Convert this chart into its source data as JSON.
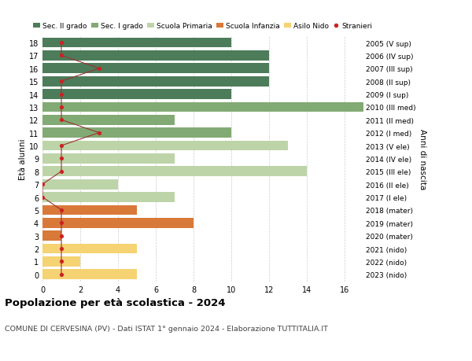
{
  "ages": [
    18,
    17,
    16,
    15,
    14,
    13,
    12,
    11,
    10,
    9,
    8,
    7,
    6,
    5,
    4,
    3,
    2,
    1,
    0
  ],
  "years": [
    "2005 (V sup)",
    "2006 (IV sup)",
    "2007 (III sup)",
    "2008 (II sup)",
    "2009 (I sup)",
    "2010 (III med)",
    "2011 (II med)",
    "2012 (I med)",
    "2013 (V ele)",
    "2014 (IV ele)",
    "2015 (III ele)",
    "2016 (II ele)",
    "2017 (I ele)",
    "2018 (mater)",
    "2019 (mater)",
    "2020 (mater)",
    "2021 (nido)",
    "2022 (nido)",
    "2023 (nido)"
  ],
  "values": [
    10,
    12,
    12,
    12,
    10,
    17,
    7,
    10,
    13,
    7,
    14,
    4,
    7,
    5,
    8,
    1,
    5,
    2,
    5
  ],
  "stranieri": [
    1,
    1,
    3,
    1,
    1,
    1,
    1,
    3,
    1,
    1,
    1,
    0,
    0,
    1,
    1,
    1,
    1,
    1,
    1
  ],
  "categories": {
    "sec2": [
      14,
      15,
      16,
      17,
      18
    ],
    "sec1": [
      11,
      12,
      13
    ],
    "primaria": [
      6,
      7,
      8,
      9,
      10
    ],
    "infanzia": [
      3,
      4,
      5
    ],
    "nido": [
      0,
      1,
      2
    ]
  },
  "colors": {
    "sec2": "#4d7c5a",
    "sec1": "#82aa74",
    "primaria": "#bdd4a8",
    "infanzia": "#d8793a",
    "nido": "#f5d272"
  },
  "stranieri_color": "#cc2222",
  "stranieri_line_color": "#993333",
  "title": "Popolazione per età scolastica - 2024",
  "subtitle": "COMUNE DI CERVESINA (PV) - Dati ISTAT 1° gennaio 2024 - Elaborazione TUTTITALIA.IT",
  "ylabel_left": "Età alunni",
  "ylabel_right": "Anni di nascita",
  "xlim": [
    0,
    17
  ],
  "xticks": [
    0,
    2,
    4,
    6,
    8,
    10,
    12,
    14,
    16
  ],
  "bg_color": "#ffffff",
  "legend_labels": [
    "Sec. II grado",
    "Sec. I grado",
    "Scuola Primaria",
    "Scuola Infanzia",
    "Asilo Nido",
    "Stranieri"
  ]
}
